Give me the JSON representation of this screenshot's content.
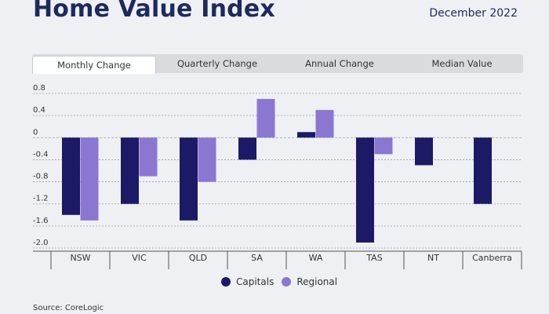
{
  "header": {
    "title": "Home Value Index",
    "date": "December 2022"
  },
  "tabs": [
    {
      "label": "Monthly Change",
      "active": true
    },
    {
      "label": "Quarterly Change",
      "active": false
    },
    {
      "label": "Annual Change",
      "active": false
    },
    {
      "label": "Median Value",
      "active": false
    }
  ],
  "colors": {
    "capitals": "#1c1a66",
    "regional": "#8b76d1",
    "grid": "#9aa0a8"
  },
  "chart_data": {
    "type": "bar",
    "categories": [
      "NSW",
      "VIC",
      "QLD",
      "SA",
      "WA",
      "TAS",
      "NT",
      "Canberra"
    ],
    "series": [
      {
        "name": "Capitals",
        "values": [
          -1.4,
          -1.2,
          -1.5,
          -0.4,
          0.1,
          -1.9,
          -0.5,
          -1.2
        ]
      },
      {
        "name": "Regional",
        "values": [
          -1.5,
          -0.7,
          -0.8,
          0.7,
          0.5,
          -0.3,
          null,
          null
        ]
      }
    ],
    "yticks": [
      "0.8",
      "0.4",
      "0",
      "-0.4",
      "-0.8",
      "-1.2",
      "-1.6",
      "-2.0"
    ],
    "ylim": [
      -2.0,
      0.8
    ],
    "grid": true,
    "legend": "bottom"
  },
  "legend": {
    "capitals": "Capitals",
    "regional": "Regional"
  },
  "footer": {
    "source": "Source: CoreLogic"
  }
}
